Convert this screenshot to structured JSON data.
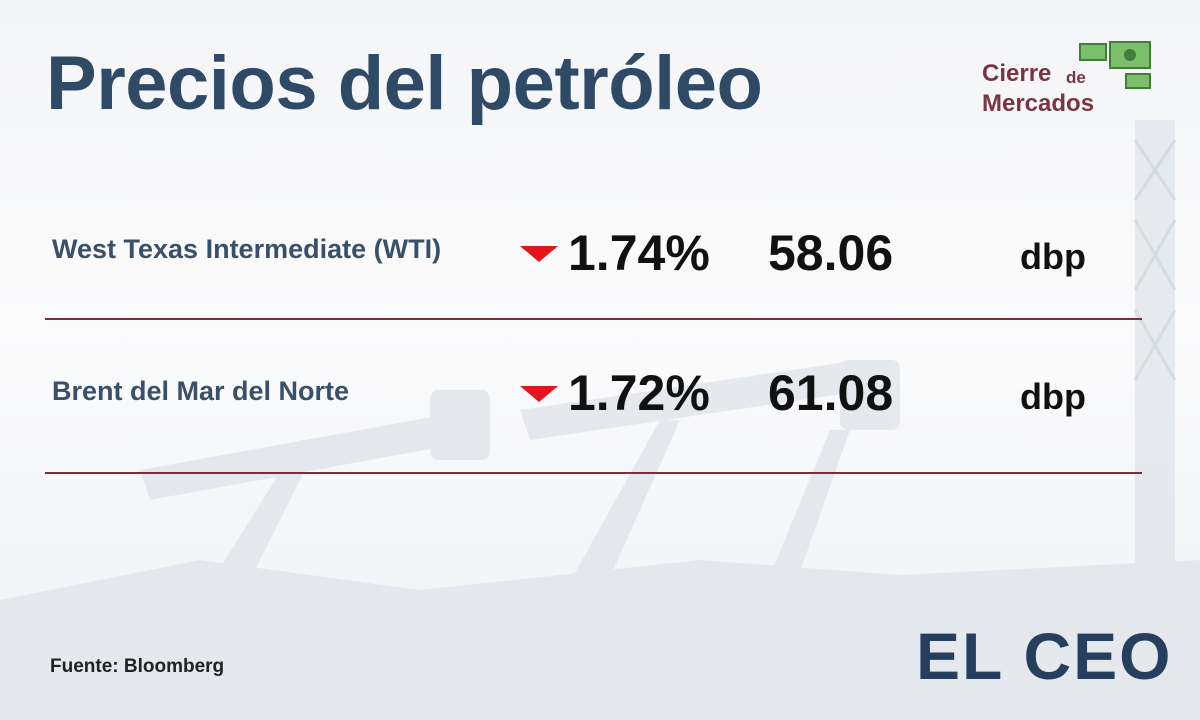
{
  "header": {
    "title": "Precios del petróleo"
  },
  "badge": {
    "line1": "Cierre",
    "small": "de",
    "line2": "Mercados"
  },
  "table": {
    "rows": [
      [
        "West Texas Intermediate (WTI)",
        "1.74%",
        "58.06",
        "dbp"
      ],
      [
        "Brent del Mar del Norte",
        "1.72%",
        "61.08",
        "dbp"
      ]
    ]
  },
  "footer": {
    "source": "Fuente: Bloomberg",
    "logo": "EL CEO"
  }
}
